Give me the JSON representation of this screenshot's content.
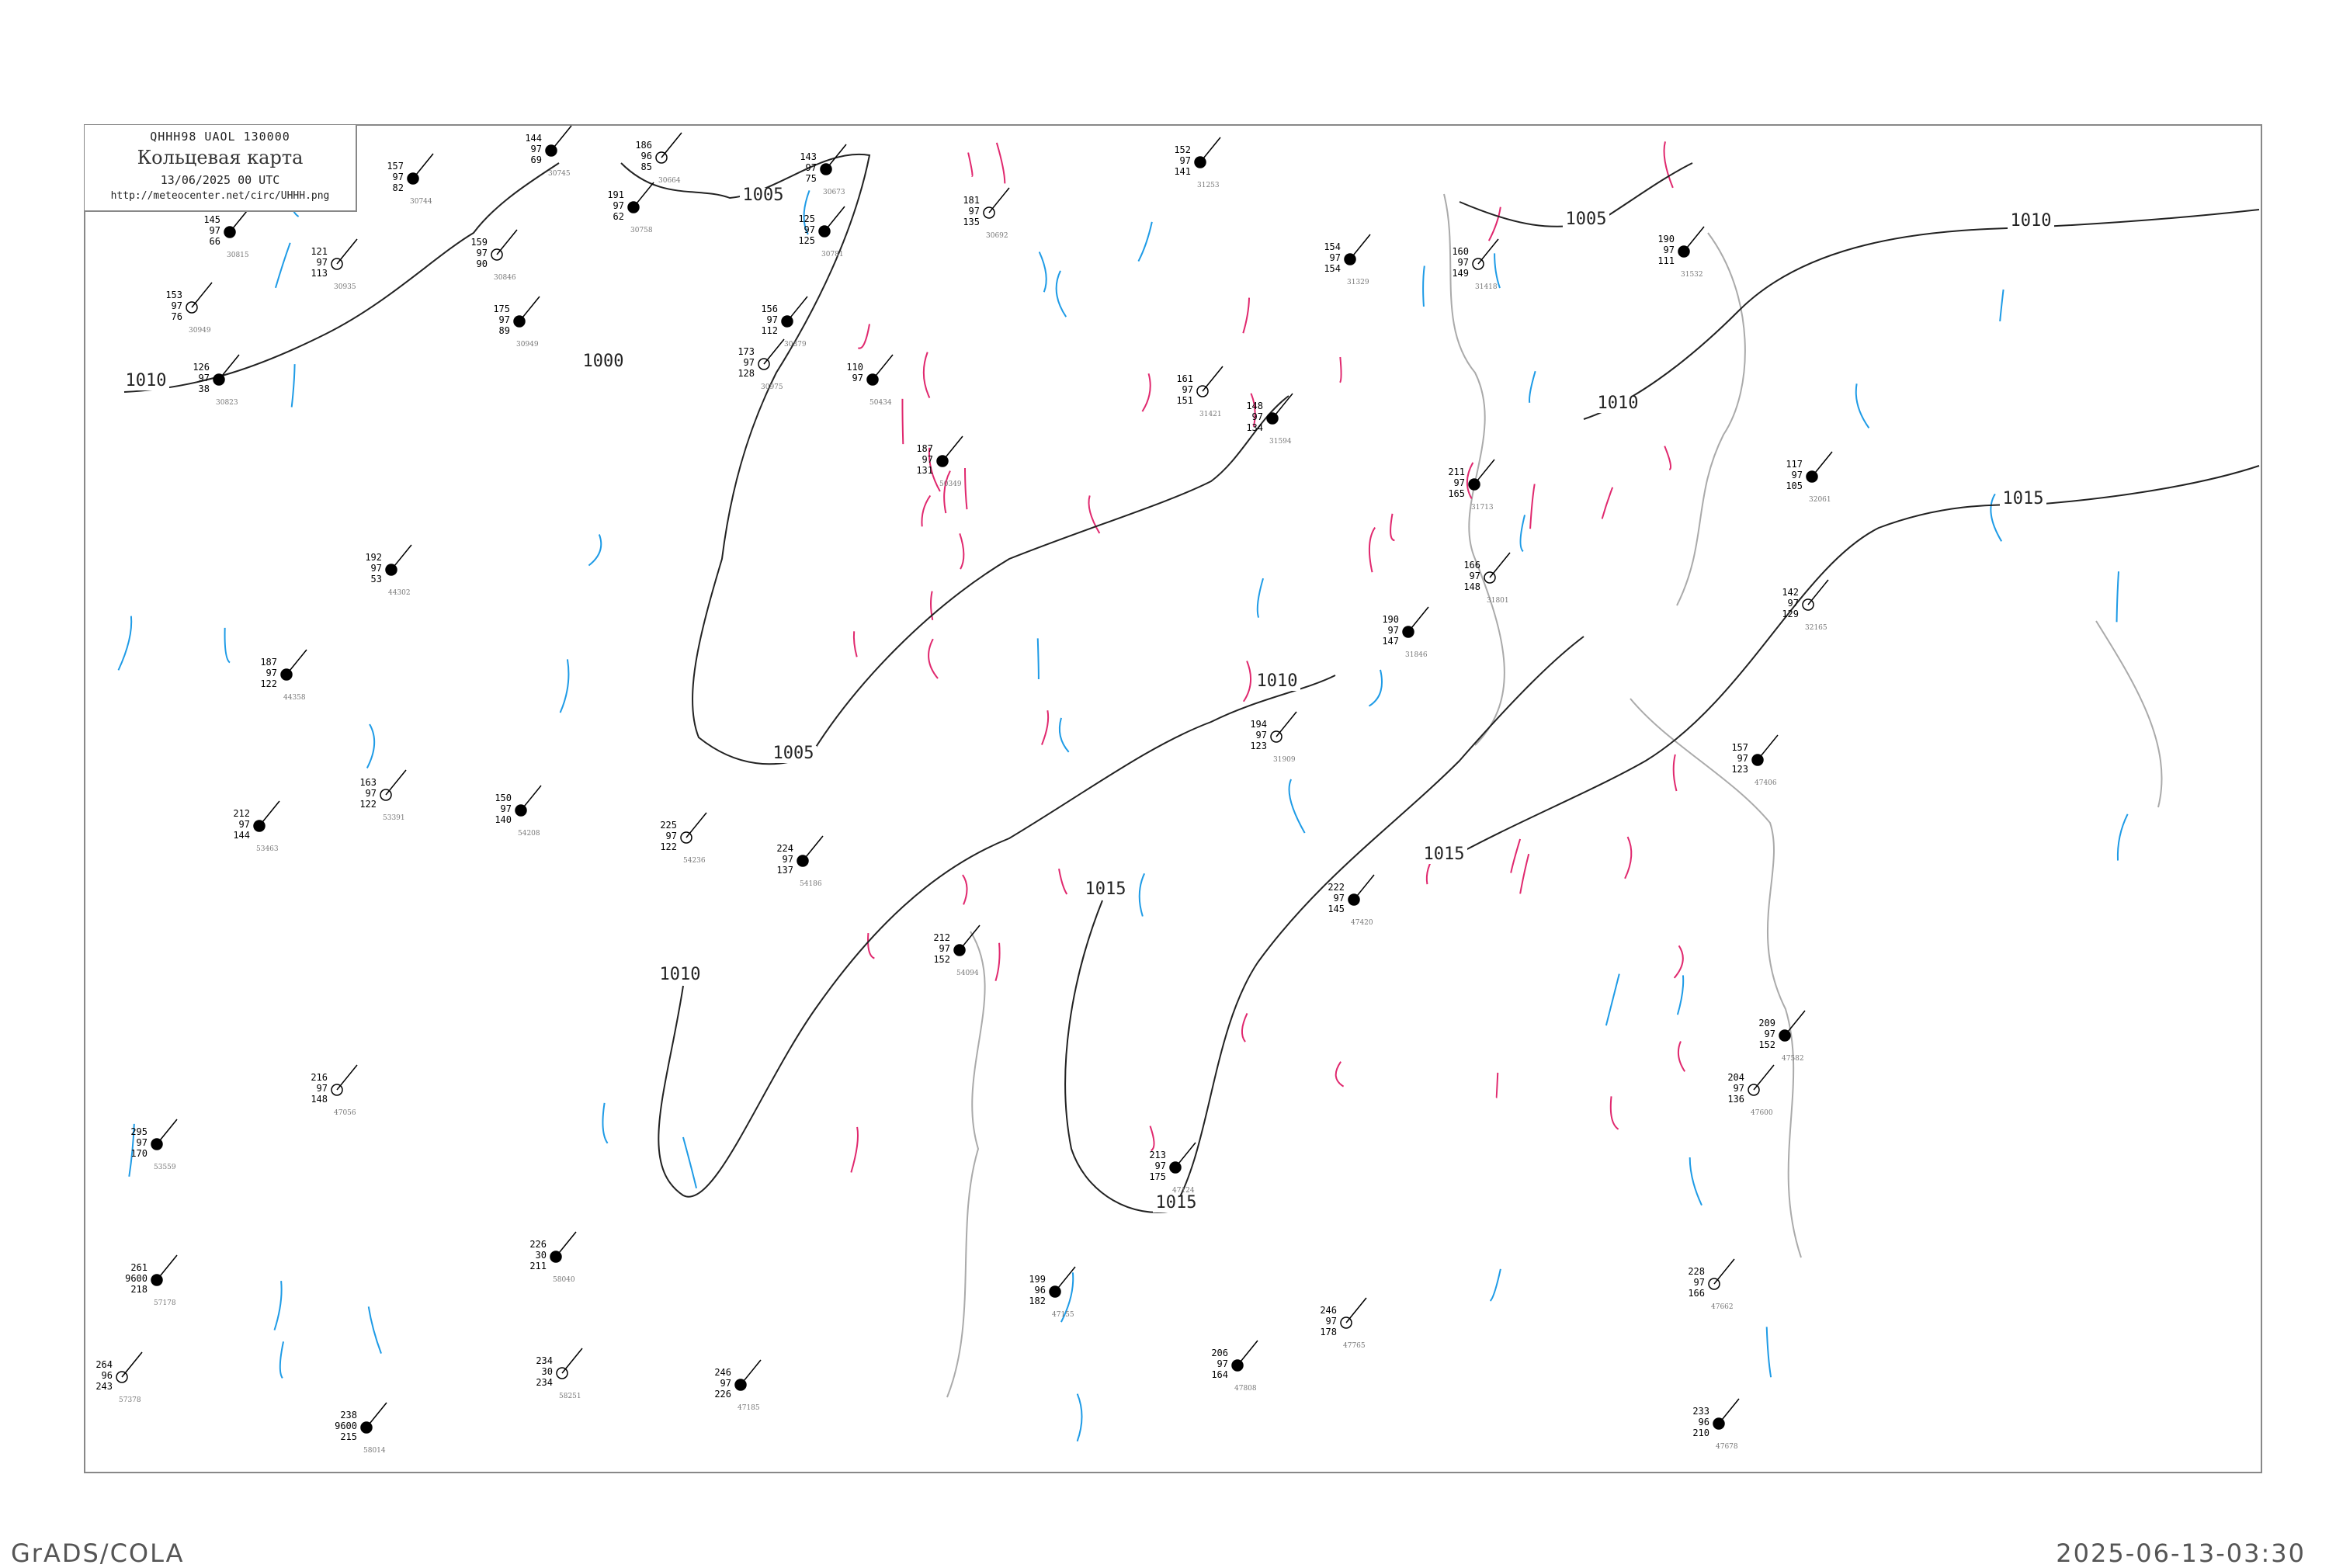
{
  "header": {
    "code_line": "QHHH98   UAOL   130000",
    "title": "Кольцевая карта",
    "datetime": "13/06/2025 00 UTC",
    "url": "http://meteocenter.net/circ/UHHH.png"
  },
  "footer": {
    "left": "GrADS/COLA",
    "right": "2025-06-13-03:30"
  },
  "colors": {
    "isobar": "#222222",
    "coast": "#aaaaaa",
    "rivers": "#1e9be6",
    "fronts": "#e0286e",
    "frame": "#888888"
  },
  "isobar_labels": [
    "1005",
    "1005",
    "1010",
    "1010",
    "1010",
    "1015",
    "1005",
    "1010",
    "1010",
    "1015",
    "1015",
    "1015",
    "1000"
  ],
  "stations": [
    {
      "t": "153",
      "p": "97",
      "d": "76",
      "id": "30949"
    },
    {
      "t": "126",
      "p": "97",
      "d": "38",
      "id": "30823"
    },
    {
      "t": "145",
      "p": "97",
      "d": "66",
      "id": "30815"
    },
    {
      "t": "121",
      "p": "97",
      "d": "113",
      "id": "30935"
    },
    {
      "t": "157",
      "p": "97",
      "d": "82",
      "id": "30744"
    },
    {
      "t": "144",
      "p": "97",
      "d": "69",
      "id": "30745"
    },
    {
      "t": "186",
      "p": "96",
      "d": "85",
      "id": "30664"
    },
    {
      "t": "191",
      "p": "97",
      "d": "62",
      "id": "30758"
    },
    {
      "t": "175",
      "p": "97",
      "d": "89",
      "id": "30949"
    },
    {
      "t": "159",
      "p": "97",
      "d": "90",
      "id": "30846"
    },
    {
      "t": "143",
      "p": "97",
      "d": "75",
      "id": "30673"
    },
    {
      "t": "125",
      "p": "97",
      "d": "125",
      "id": "30781"
    },
    {
      "t": "181",
      "p": "97",
      "d": "135",
      "id": "30692"
    },
    {
      "t": "152",
      "p": "97",
      "d": "141",
      "id": "31253"
    },
    {
      "t": "154",
      "p": "97",
      "d": "154",
      "id": "31329"
    },
    {
      "t": "160",
      "p": "97",
      "d": "149",
      "id": "31418"
    },
    {
      "t": "190",
      "p": "97",
      "d": "111",
      "id": "31532"
    },
    {
      "t": "156",
      "p": "97",
      "d": "112",
      "id": "30879"
    },
    {
      "t": "173",
      "p": "97",
      "d": "128",
      "id": "30975"
    },
    {
      "t": "110",
      "p": "97",
      "d": "",
      "id": "50434"
    },
    {
      "t": "187",
      "p": "97",
      "d": "131",
      "id": "50349"
    },
    {
      "t": "161",
      "p": "97",
      "d": "151",
      "id": "31421"
    },
    {
      "t": "148",
      "p": "97",
      "d": "134",
      "id": "31594"
    },
    {
      "t": "211",
      "p": "97",
      "d": "165",
      "id": "31713"
    },
    {
      "t": "166",
      "p": "97",
      "d": "148",
      "id": "31801"
    },
    {
      "t": "190",
      "p": "97",
      "d": "147",
      "id": "31846"
    },
    {
      "t": "117",
      "p": "97",
      "d": "105",
      "id": "32061"
    },
    {
      "t": "142",
      "p": "97",
      "d": "129",
      "id": "32165"
    },
    {
      "t": "192",
      "p": "97",
      "d": "53",
      "id": "44302"
    },
    {
      "t": "187",
      "p": "97",
      "d": "122",
      "id": "44358"
    },
    {
      "t": "163",
      "p": "97",
      "d": "122",
      "id": "53391"
    },
    {
      "t": "212",
      "p": "97",
      "d": "144",
      "id": "53463"
    },
    {
      "t": "150",
      "p": "97",
      "d": "140",
      "id": "54208"
    },
    {
      "t": "225",
      "p": "97",
      "d": "122",
      "id": "54236"
    },
    {
      "t": "224",
      "p": "97",
      "d": "137",
      "id": "54186"
    },
    {
      "t": "212",
      "p": "97",
      "d": "152",
      "id": "54094"
    },
    {
      "t": "194",
      "p": "97",
      "d": "123",
      "id": "31909"
    },
    {
      "t": "157",
      "p": "97",
      "d": "123",
      "id": "47406"
    },
    {
      "t": "209",
      "p": "97",
      "d": "152",
      "id": "47582"
    },
    {
      "t": "204",
      "p": "97",
      "d": "136",
      "id": "47600"
    },
    {
      "t": "222",
      "p": "97",
      "d": "145",
      "id": "47420"
    },
    {
      "t": "213",
      "p": "97",
      "d": "175",
      "id": "47124"
    },
    {
      "t": "216",
      "p": "97",
      "d": "148",
      "id": "47056"
    },
    {
      "t": "295",
      "p": "97",
      "d": "170",
      "id": "53559"
    },
    {
      "t": "261",
      "p": "9600",
      "d": "218",
      "id": "57178"
    },
    {
      "t": "264",
      "p": "96",
      "d": "243",
      "id": "57378"
    },
    {
      "t": "238",
      "p": "9600",
      "d": "215",
      "id": "58014"
    },
    {
      "t": "226",
      "p": "30",
      "d": "211",
      "id": "58040"
    },
    {
      "t": "234",
      "p": "30",
      "d": "234",
      "id": "58251"
    },
    {
      "t": "246",
      "p": "97",
      "d": "226",
      "id": "47185"
    },
    {
      "t": "233",
      "p": "96",
      "d": "210",
      "id": "47678"
    },
    {
      "t": "228",
      "p": "97",
      "d": "166",
      "id": "47662"
    },
    {
      "t": "199",
      "p": "96",
      "d": "182",
      "id": "47155"
    },
    {
      "t": "206",
      "p": "97",
      "d": "164",
      "id": "47808"
    },
    {
      "t": "246",
      "p": "97",
      "d": "178",
      "id": "47765"
    }
  ]
}
